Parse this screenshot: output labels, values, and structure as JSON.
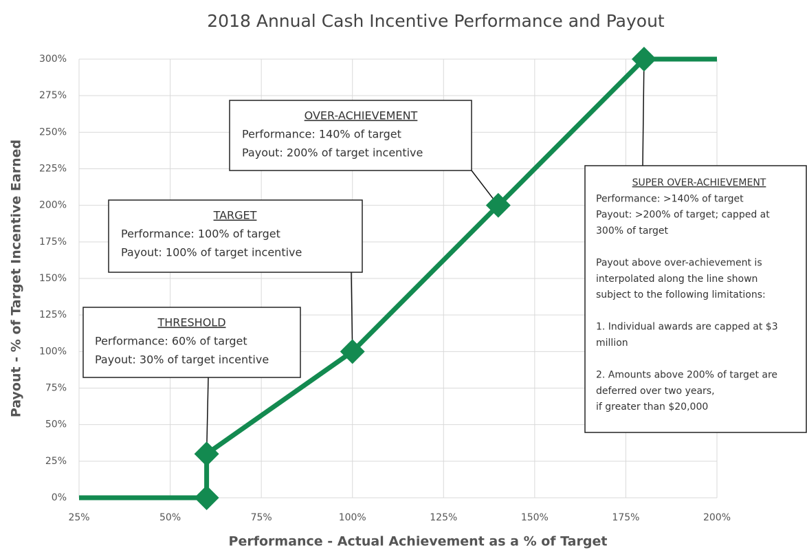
{
  "chart_data": {
    "type": "line",
    "title": "2018 Annual Cash Incentive Performance and Payout",
    "x_label": "Performance - Actual Achievement as a % of Target",
    "y_label": "Payout - % of Target Incentive Earned",
    "x": [
      25,
      60,
      60,
      100,
      140,
      180,
      200
    ],
    "values": [
      0,
      0,
      30,
      100,
      200,
      300,
      300
    ],
    "color": "#138a50",
    "xlim": [
      25,
      200
    ],
    "xticks": [
      {
        "value": 25,
        "label": "25%"
      },
      {
        "value": 50,
        "label": "50%"
      },
      {
        "value": 75,
        "label": "75%"
      },
      {
        "value": 100,
        "label": "100%"
      },
      {
        "value": 125,
        "label": "125%"
      },
      {
        "value": 150,
        "label": "150%"
      },
      {
        "value": 175,
        "label": "175%"
      },
      {
        "value": 200,
        "label": "200%"
      }
    ],
    "ylim": [
      0,
      300
    ],
    "yticks": [
      {
        "value": 0,
        "label": "0%"
      },
      {
        "value": 25,
        "label": "25%"
      },
      {
        "value": 50,
        "label": "50%"
      },
      {
        "value": 75,
        "label": "75%"
      },
      {
        "value": 100,
        "label": "100%"
      },
      {
        "value": 125,
        "label": "125%"
      },
      {
        "value": 150,
        "label": "150%"
      },
      {
        "value": 175,
        "label": "175%"
      },
      {
        "value": 200,
        "label": "200%"
      },
      {
        "value": 225,
        "label": "225%"
      },
      {
        "value": 250,
        "label": "250%"
      },
      {
        "value": 275,
        "label": "275%"
      },
      {
        "value": 300,
        "label": "300%"
      }
    ],
    "grid": true,
    "annotations": [
      {
        "title": "THRESHOLD",
        "paragraphs": [
          [
            "Performance: 60% of target",
            "Payout: 30% of target incentive"
          ]
        ]
      },
      {
        "title": "TARGET",
        "paragraphs": [
          [
            "Performance: 100% of target",
            "Payout: 100% of target incentive"
          ]
        ]
      },
      {
        "title": "OVER-ACHIEVEMENT",
        "paragraphs": [
          [
            "Performance: 140% of target",
            "Payout: 200% of target incentive"
          ]
        ]
      },
      {
        "title": "SUPER OVER-ACHIEVEMENT",
        "paragraphs": [
          [
            "Performance: >140% of target",
            "Payout: >200% of target; capped at",
            "300% of target"
          ],
          [
            "Payout above over-achievement is",
            "interpolated along the line shown",
            "subject to the following limitations:"
          ],
          [
            "1. Individual awards are capped at $3",
            "million"
          ],
          [
            "2. Amounts above 200% of target are",
            "deferred over two years,",
            "if greater than $20,000"
          ]
        ]
      }
    ]
  }
}
